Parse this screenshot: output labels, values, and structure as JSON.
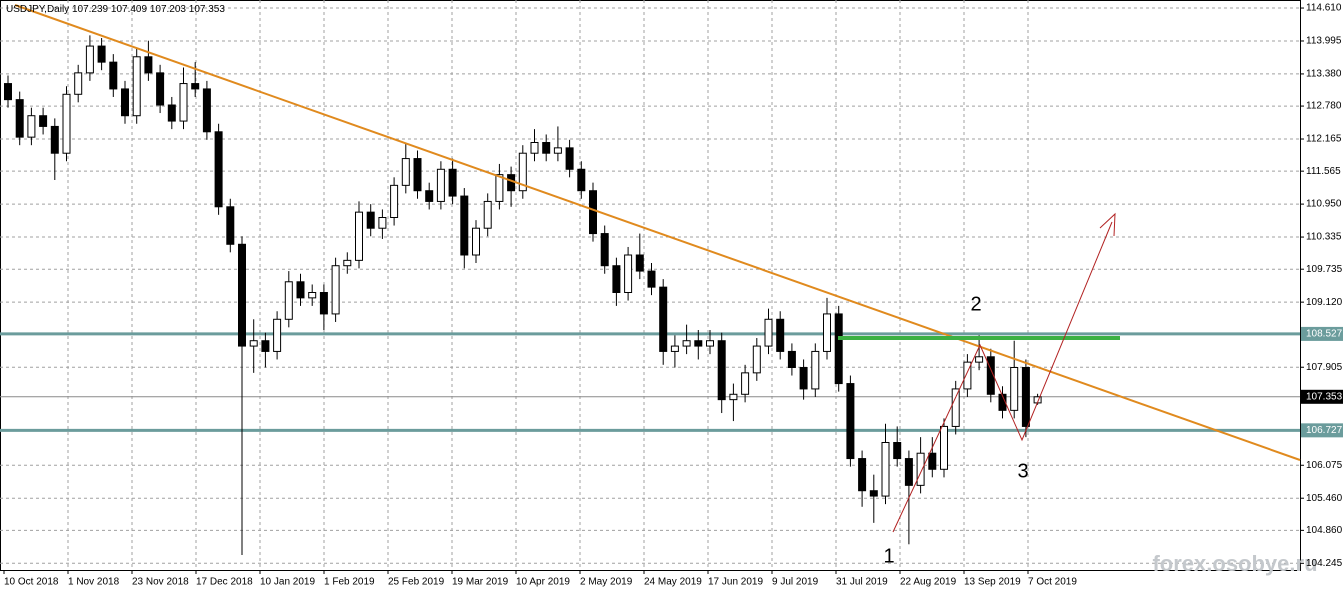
{
  "chart_data": {
    "type": "candlestick",
    "title": "USDJPY,Daily",
    "header_values": [
      107.239,
      107.409,
      107.203,
      107.353
    ],
    "ylim": [
      104.12,
      114.76
    ],
    "yticks": [
      {
        "value": 114.61,
        "label": "114.610"
      },
      113.995,
      {
        "value": 113.38,
        "label": "113.380"
      },
      {
        "value": 112.78,
        "label": "112.780"
      },
      112.165,
      111.565,
      {
        "value": 110.95,
        "label": "110.950"
      },
      110.335,
      109.735,
      {
        "value": 109.12,
        "label": "109.120"
      },
      107.905,
      106.075,
      {
        "value": 105.46,
        "label": "105.460"
      },
      {
        "value": 104.86,
        "label": "104.860"
      },
      104.245
    ],
    "xlabels": [
      "10 Oct 2018",
      "1 Nov 2018",
      "23 Nov 2018",
      "17 Dec 2018",
      "10 Jan 2019",
      "1 Feb 2019",
      "25 Feb 2019",
      "19 Mar 2019",
      "10 Apr 2019",
      "2 May 2019",
      "24 May 2019",
      "17 Jun 2019",
      "9 Jul 2019",
      "31 Jul 2019",
      "22 Aug 2019",
      "13 Sep 2019",
      "7 Oct 2019"
    ],
    "grid": true,
    "up_color": "#ffffff",
    "down_color": "#000000",
    "open": [
      113.2,
      112.9,
      112.2,
      112.6,
      112.4,
      111.9,
      113.0,
      113.4,
      113.9,
      113.6,
      113.1,
      112.6,
      113.7,
      113.4,
      112.8,
      112.5,
      113.2,
      113.1,
      112.3,
      110.9,
      110.2,
      108.3,
      108.4,
      108.2,
      108.8,
      109.5,
      109.2,
      109.3,
      108.9,
      109.8,
      109.9,
      110.8,
      110.5,
      110.7,
      111.3,
      111.8,
      111.2,
      111.0,
      111.6,
      111.1,
      110.0,
      110.5,
      111.0,
      111.5,
      111.2,
      111.9,
      112.1,
      111.9,
      112.0,
      111.6,
      111.2,
      110.4,
      109.8,
      109.3,
      110.0,
      109.7,
      109.4,
      108.2,
      108.3,
      108.4,
      108.3,
      108.4,
      107.3,
      107.4,
      107.8,
      108.3,
      108.8,
      108.2,
      107.9,
      107.5,
      108.2,
      108.9,
      107.6,
      106.2,
      105.6,
      105.5,
      106.5,
      106.2,
      105.7,
      106.3,
      106.0,
      106.8,
      107.5,
      108.0,
      108.1,
      107.4,
      107.1,
      107.9,
      107.239
    ],
    "high": [
      113.35,
      113.05,
      112.75,
      112.75,
      112.55,
      113.15,
      113.55,
      114.1,
      114.05,
      113.75,
      113.25,
      113.85,
      114.0,
      113.55,
      112.95,
      113.5,
      113.6,
      113.25,
      112.45,
      111.05,
      110.35,
      108.8,
      108.55,
      108.95,
      109.7,
      109.65,
      109.45,
      109.45,
      109.95,
      110.05,
      111.0,
      110.95,
      110.85,
      111.45,
      112.1,
      111.95,
      111.35,
      111.75,
      111.8,
      111.25,
      110.65,
      111.15,
      111.7,
      111.65,
      112.05,
      112.35,
      112.25,
      112.4,
      112.15,
      111.75,
      111.35,
      110.55,
      109.95,
      110.15,
      110.4,
      109.85,
      109.55,
      108.5,
      108.7,
      108.6,
      108.6,
      108.55,
      107.6,
      107.95,
      108.45,
      109.0,
      108.95,
      108.35,
      108.05,
      108.35,
      109.2,
      109.05,
      107.75,
      106.35,
      105.9,
      106.85,
      106.8,
      106.35,
      106.6,
      106.6,
      106.95,
      107.65,
      108.15,
      108.5,
      108.25,
      107.55,
      108.4,
      108.05,
      107.409
    ],
    "low": [
      112.75,
      112.05,
      112.05,
      112.25,
      111.4,
      111.75,
      112.85,
      113.25,
      113.45,
      112.95,
      112.45,
      112.45,
      113.25,
      112.65,
      112.35,
      112.35,
      112.95,
      112.15,
      110.75,
      110.05,
      104.4,
      107.8,
      107.9,
      108.05,
      108.65,
      109.05,
      109.05,
      108.6,
      108.75,
      109.65,
      109.75,
      110.35,
      110.3,
      110.55,
      111.15,
      111.05,
      110.85,
      110.85,
      110.95,
      109.75,
      109.85,
      110.35,
      110.85,
      110.9,
      111.05,
      111.75,
      111.75,
      111.75,
      111.45,
      111.05,
      110.25,
      109.65,
      109.05,
      109.15,
      109.55,
      109.25,
      107.95,
      107.9,
      108.15,
      108.05,
      108.15,
      107.05,
      106.9,
      107.25,
      107.65,
      108.15,
      108.05,
      107.75,
      107.3,
      107.35,
      108.05,
      107.45,
      106.05,
      105.3,
      105.0,
      105.35,
      106.05,
      104.6,
      105.55,
      105.85,
      105.85,
      106.65,
      107.35,
      107.85,
      107.25,
      106.95,
      106.95,
      106.6,
      107.203
    ],
    "close": [
      112.9,
      112.2,
      112.6,
      112.4,
      111.9,
      113.0,
      113.4,
      113.9,
      113.6,
      113.1,
      112.6,
      113.7,
      113.4,
      112.8,
      112.5,
      113.2,
      113.1,
      112.3,
      110.9,
      110.2,
      108.3,
      108.4,
      108.2,
      108.8,
      109.5,
      109.2,
      109.3,
      108.9,
      109.8,
      109.9,
      110.8,
      110.5,
      110.7,
      111.3,
      111.8,
      111.2,
      111.0,
      111.6,
      111.1,
      110.0,
      110.5,
      111.0,
      111.5,
      111.2,
      111.9,
      112.1,
      111.9,
      112.0,
      111.6,
      111.2,
      110.4,
      109.8,
      109.3,
      110.0,
      109.7,
      109.4,
      108.2,
      108.3,
      108.4,
      108.3,
      108.4,
      107.3,
      107.4,
      107.8,
      108.3,
      108.8,
      108.2,
      107.9,
      107.5,
      108.2,
      108.9,
      107.6,
      106.2,
      105.6,
      105.5,
      106.5,
      106.2,
      105.7,
      106.3,
      106.0,
      106.8,
      107.5,
      108.0,
      108.1,
      107.4,
      107.1,
      107.9,
      106.8,
      107.353
    ],
    "levels": [
      {
        "value": 108.527,
        "color": "#6b9c9c"
      },
      {
        "value": 107.353,
        "color": "#8a8a8a"
      },
      {
        "value": 106.727,
        "color": "#6b9c9c"
      }
    ],
    "annotations": [
      "1",
      "2",
      "3"
    ],
    "watermark": "forex.osobye.ru"
  }
}
